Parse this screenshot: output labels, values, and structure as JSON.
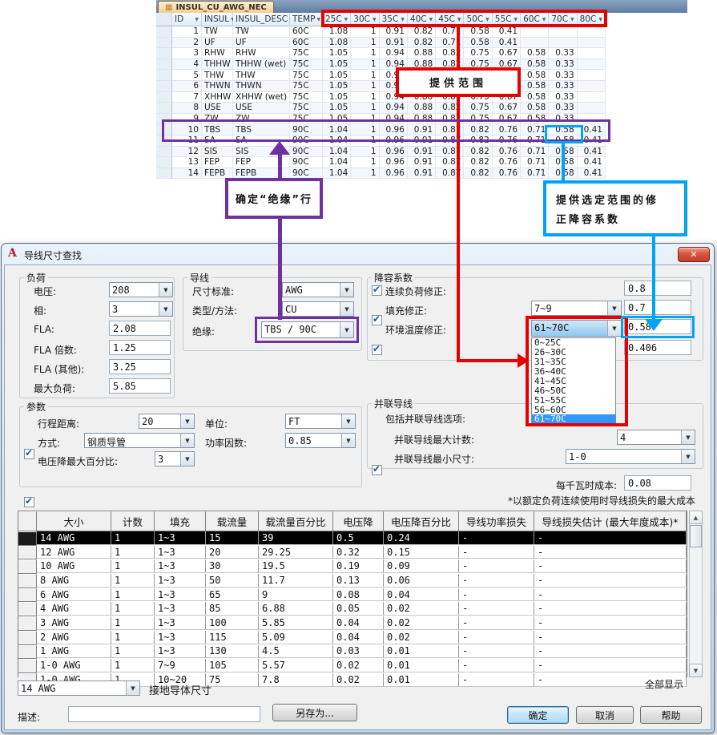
{
  "access_table": {
    "tab_title": "INSUL_CU_AWG_NEC",
    "columns": [
      "ID",
      "INSUL",
      "INSUL_DESC",
      "TEMP",
      "25C",
      "30C",
      "35C",
      "40C",
      "45C",
      "50C",
      "55C",
      "60C",
      "70C",
      "80C"
    ],
    "rows": [
      [
        "1",
        "TW",
        "TW",
        "60C",
        "1.08",
        "1",
        "0.91",
        "0.82",
        "0.71",
        "0.58",
        "0.41",
        "",
        "",
        ""
      ],
      [
        "2",
        "UF",
        "UF",
        "60C",
        "1.08",
        "1",
        "0.91",
        "0.82",
        "0.71",
        "0.58",
        "0.41",
        "",
        "",
        ""
      ],
      [
        "3",
        "RHW",
        "RHW",
        "75C",
        "1.05",
        "1",
        "0.94",
        "0.88",
        "0.82",
        "0.75",
        "0.67",
        "0.58",
        "0.33",
        ""
      ],
      [
        "4",
        "THHW",
        "THHW (wet)",
        "75C",
        "1.05",
        "1",
        "0.94",
        "0.88",
        "0.82",
        "0.75",
        "0.67",
        "0.58",
        "0.33",
        ""
      ],
      [
        "5",
        "THW",
        "THW",
        "75C",
        "1.05",
        "1",
        "0.94",
        "0.88",
        "0.82",
        "0.75",
        "0.67",
        "0.58",
        "0.33",
        ""
      ],
      [
        "6",
        "THWN",
        "THWN",
        "75C",
        "1.05",
        "1",
        "0.94",
        "0.88",
        "0.82",
        "0.75",
        "0.67",
        "0.58",
        "0.33",
        ""
      ],
      [
        "7",
        "XHHW",
        "XHHW (wet)",
        "75C",
        "1.05",
        "1",
        "0.94",
        "0.88",
        "0.82",
        "0.75",
        "0.67",
        "0.58",
        "0.33",
        ""
      ],
      [
        "8",
        "USE",
        "USE",
        "75C",
        "1.05",
        "1",
        "0.94",
        "0.88",
        "0.82",
        "0.75",
        "0.67",
        "0.58",
        "0.33",
        ""
      ],
      [
        "9",
        "ZW",
        "ZW",
        "75C",
        "1.05",
        "1",
        "0.94",
        "0.88",
        "0.82",
        "0.75",
        "0.67",
        "0.58",
        "0.33",
        ""
      ],
      [
        "10",
        "TBS",
        "TBS",
        "90C",
        "1.04",
        "1",
        "0.96",
        "0.91",
        "0.87",
        "0.82",
        "0.76",
        "0.71",
        "0.58",
        "0.41"
      ],
      [
        "11",
        "SA",
        "SA",
        "90C",
        "1.04",
        "1",
        "0.96",
        "0.91",
        "0.87",
        "0.82",
        "0.76",
        "0.71",
        "0.58",
        "0.41"
      ],
      [
        "12",
        "SIS",
        "SIS",
        "90C",
        "1.04",
        "1",
        "0.96",
        "0.91",
        "0.87",
        "0.82",
        "0.76",
        "0.71",
        "0.58",
        "0.41"
      ],
      [
        "13",
        "FEP",
        "FEP",
        "90C",
        "1.04",
        "1",
        "0.96",
        "0.91",
        "0.87",
        "0.82",
        "0.76",
        "0.71",
        "0.58",
        "0.41"
      ],
      [
        "14",
        "FEPB",
        "FEPB",
        "90C",
        "1.04",
        "1",
        "0.96",
        "0.91",
        "0.87",
        "0.82",
        "0.76",
        "0.71",
        "0.58",
        "0.41"
      ]
    ],
    "highlighted_row_index": 9,
    "highlighted_cell_value": "0.58"
  },
  "annotations": {
    "range_label": "提供范围",
    "insulation_row_label": "确定“绝缘”行",
    "factor_label_line1": "提供选定范围的修",
    "factor_label_line2": "正降容系数",
    "red": "#E60000",
    "purple": "#7030A0",
    "blue": "#00A3F5"
  },
  "dialog": {
    "title": "导线尺寸查找",
    "app_icon": "A",
    "close_icon": "✕",
    "load_group": {
      "title": "负荷",
      "voltage_label": "电压:",
      "voltage_value": "208",
      "phase_label": "相:",
      "phase_value": "3",
      "fla_label": "FLA:",
      "fla_value": "2.08",
      "fla_mult_label": "FLA 倍数:",
      "fla_mult_value": "1.25",
      "fla_other_label": "FLA (其他):",
      "fla_other_value": "3.25",
      "max_load_label": "最大负荷:",
      "max_load_value": "5.85"
    },
    "wire_group": {
      "title": "导线",
      "size_std_label": "尺寸标准:",
      "size_std_value": "AWG",
      "type_label": "类型/方法:",
      "type_value": "CU",
      "insulation_label": "绝缘:",
      "insulation_value": "TBS / 90C"
    },
    "derating_group": {
      "title": "降容系数",
      "continuous_label": "连续负荷修正:",
      "continuous_value": "0.8",
      "fill_label": "填充修正:",
      "fill_combo": "7~9",
      "fill_value": "0.7",
      "ambient_label": "环境温度修正:",
      "ambient_combo": "61~70C",
      "ambient_value": "0.58",
      "total_value": "0.406",
      "temp_options": [
        "0~25C",
        "26~30C",
        "31~35C",
        "36~40C",
        "41~45C",
        "46~50C",
        "51~55C",
        "56~60C",
        "61~70C"
      ],
      "selected_option_index": 8
    },
    "param_group": {
      "title": "参数",
      "distance_label": "行程距离:",
      "distance_value": "20",
      "unit_label": "单位:",
      "unit_value": "FT",
      "method_label": "方式:",
      "method_value": "钢质导管",
      "pf_label": "功率因数:",
      "pf_value": "0.85",
      "vdrop_label": "电压降最大百分比:",
      "vdrop_value": "3"
    },
    "parallel_group": {
      "title": "并联导线",
      "include_label": "包括并联导线选项:",
      "max_count_label": "并联导线最大计数:",
      "max_count_value": "4",
      "min_size_label": "并联导线最小尺寸:",
      "min_size_value": "1-0"
    },
    "cost_label": "每千瓦时成本:",
    "cost_value": "0.08",
    "footnote": "*以额定负荷连续使用时导线损失的最大成本",
    "results": {
      "columns": [
        "大小",
        "计数",
        "填充",
        "载流量",
        "载流量百分比",
        "电压降",
        "电压降百分比",
        "导线功率损失",
        "导线损失估计 (最大年度成本)*"
      ],
      "rows": [
        [
          "14 AWG",
          "1",
          "1~3",
          "15",
          "39",
          "0.5",
          "0.24",
          "-",
          "-"
        ],
        [
          "12 AWG",
          "1",
          "1~3",
          "20",
          "29.25",
          "0.32",
          "0.15",
          "-",
          "-"
        ],
        [
          "10 AWG",
          "1",
          "1~3",
          "30",
          "19.5",
          "0.19",
          "0.09",
          "-",
          "-"
        ],
        [
          "8 AWG",
          "1",
          "1~3",
          "50",
          "11.7",
          "0.13",
          "0.06",
          "-",
          "-"
        ],
        [
          "6 AWG",
          "1",
          "1~3",
          "65",
          "9",
          "0.08",
          "0.04",
          "-",
          "-"
        ],
        [
          "4 AWG",
          "1",
          "1~3",
          "85",
          "6.88",
          "0.05",
          "0.02",
          "-",
          "-"
        ],
        [
          "3 AWG",
          "1",
          "1~3",
          "100",
          "5.85",
          "0.04",
          "0.02",
          "-",
          "-"
        ],
        [
          "2 AWG",
          "1",
          "1~3",
          "115",
          "5.09",
          "0.04",
          "0.02",
          "-",
          "-"
        ],
        [
          "1 AWG",
          "1",
          "1~3",
          "130",
          "4.5",
          "0.03",
          "0.01",
          "-",
          "-"
        ],
        [
          "1-0 AWG",
          "1",
          "7~9",
          "105",
          "5.57",
          "0.02",
          "0.01",
          "-",
          "-"
        ],
        [
          "1-0 AWG",
          "1",
          "10~20",
          "75",
          "7.8",
          "0.02",
          "0.01",
          "-",
          "-"
        ]
      ],
      "selected_row_index": 0
    },
    "ground_value": "14 AWG",
    "ground_label": "接地导体尺寸",
    "show_all_label": "全部显示",
    "desc_label": "描述:",
    "desc_value": "",
    "save_as_label": "另存为...",
    "ok_label": "确定",
    "cancel_label": "取消",
    "help_label": "帮助"
  }
}
